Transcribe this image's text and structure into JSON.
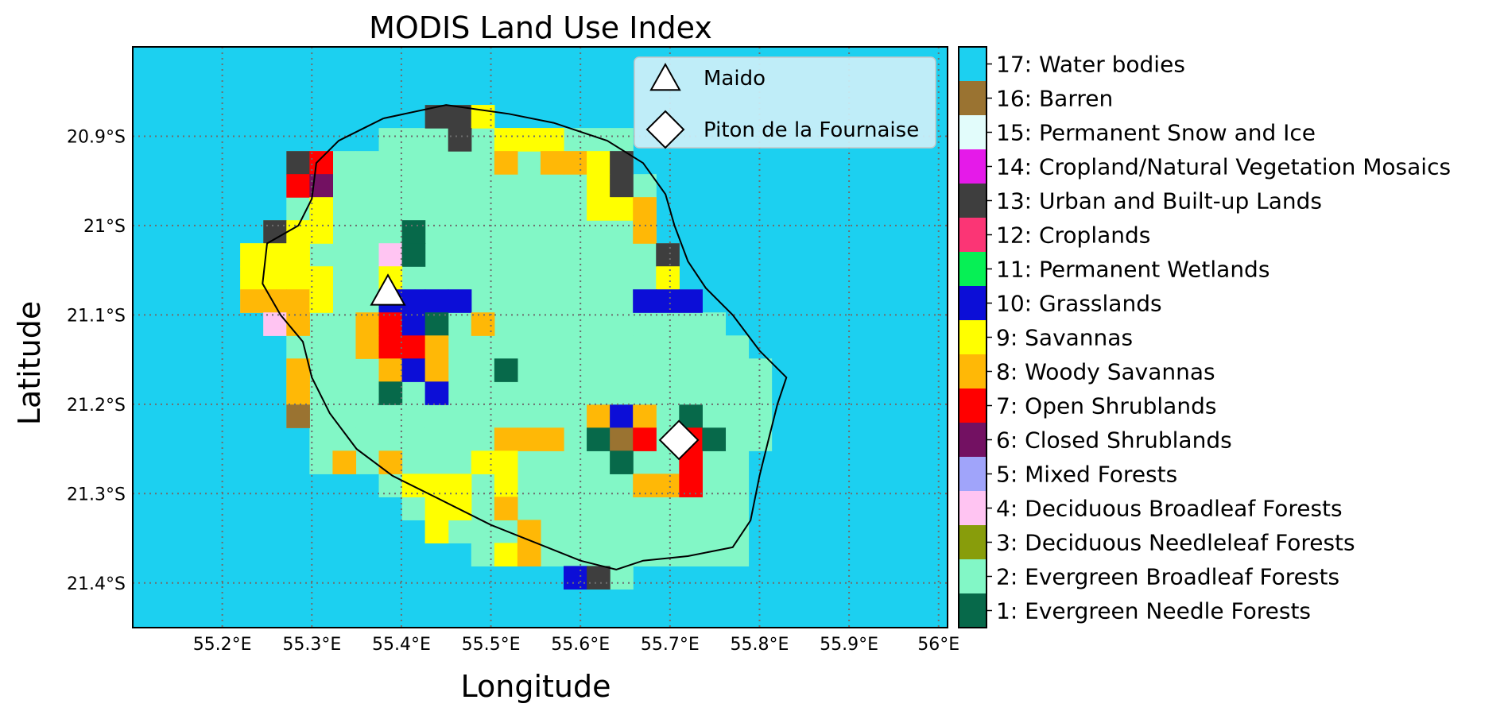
{
  "title": "MODIS Land Use Index",
  "xlabel": "Longitude",
  "ylabel": "Latitude",
  "chart_data": {
    "type": "heatmap",
    "title": "MODIS Land Use Index",
    "xlabel": "Longitude",
    "ylabel": "Latitude",
    "xlim": [
      55.1,
      56.01
    ],
    "ylim": [
      -21.45,
      -20.8
    ],
    "grid": true,
    "legend_placement": "top-right",
    "x_ticks": [
      {
        "value": 55.2,
        "label": "55.2°E"
      },
      {
        "value": 55.3,
        "label": "55.3°E"
      },
      {
        "value": 55.4,
        "label": "55.4°E"
      },
      {
        "value": 55.5,
        "label": "55.5°E"
      },
      {
        "value": 55.6,
        "label": "55.6°E"
      },
      {
        "value": 55.7,
        "label": "55.7°E"
      },
      {
        "value": 55.8,
        "label": "55.8°E"
      },
      {
        "value": 55.9,
        "label": "55.9°E"
      },
      {
        "value": 56.0,
        "label": "56°E"
      }
    ],
    "y_ticks": [
      {
        "value": -20.9,
        "label": "20.9°S"
      },
      {
        "value": -21.0,
        "label": "21°S"
      },
      {
        "value": -21.1,
        "label": "21.1°S"
      },
      {
        "value": -21.2,
        "label": "21.2°S"
      },
      {
        "value": -21.3,
        "label": "21.3°S"
      },
      {
        "value": -21.4,
        "label": "21.4°S"
      }
    ],
    "background_class": 17,
    "default_land_class": 2,
    "grid_origin": {
      "lon": 55.22,
      "lat": -20.865
    },
    "cell_size_deg": 0.0258,
    "cells": [
      {
        "r": 0,
        "c": 8,
        "v": 13
      },
      {
        "r": 0,
        "c": 9,
        "v": 13
      },
      {
        "r": 0,
        "c": 10,
        "v": 9
      },
      {
        "r": 1,
        "c": 9,
        "v": 13
      },
      {
        "r": 1,
        "c": 11,
        "v": 9
      },
      {
        "r": 1,
        "c": 12,
        "v": 9
      },
      {
        "r": 1,
        "c": 13,
        "v": 9
      },
      {
        "r": 2,
        "c": 2,
        "v": 13
      },
      {
        "r": 2,
        "c": 3,
        "v": 7
      },
      {
        "r": 2,
        "c": 11,
        "v": 8
      },
      {
        "r": 2,
        "c": 13,
        "v": 8
      },
      {
        "r": 2,
        "c": 14,
        "v": 8
      },
      {
        "r": 2,
        "c": 15,
        "v": 9
      },
      {
        "r": 2,
        "c": 16,
        "v": 13
      },
      {
        "r": 3,
        "c": 2,
        "v": 7
      },
      {
        "r": 3,
        "c": 3,
        "v": 6
      },
      {
        "r": 3,
        "c": 15,
        "v": 9
      },
      {
        "r": 3,
        "c": 16,
        "v": 13
      },
      {
        "r": 4,
        "c": 3,
        "v": 9
      },
      {
        "r": 4,
        "c": 15,
        "v": 9
      },
      {
        "r": 4,
        "c": 16,
        "v": 9
      },
      {
        "r": 4,
        "c": 17,
        "v": 8
      },
      {
        "r": 5,
        "c": 1,
        "v": 13
      },
      {
        "r": 5,
        "c": 2,
        "v": 9
      },
      {
        "r": 5,
        "c": 3,
        "v": 9
      },
      {
        "r": 5,
        "c": 7,
        "v": 1
      },
      {
        "r": 5,
        "c": 17,
        "v": 8
      },
      {
        "r": 6,
        "c": 0,
        "v": 9
      },
      {
        "r": 6,
        "c": 1,
        "v": 9
      },
      {
        "r": 6,
        "c": 2,
        "v": 9
      },
      {
        "r": 6,
        "c": 6,
        "v": 4
      },
      {
        "r": 6,
        "c": 7,
        "v": 1
      },
      {
        "r": 6,
        "c": 18,
        "v": 13
      },
      {
        "r": 7,
        "c": 0,
        "v": 9
      },
      {
        "r": 7,
        "c": 1,
        "v": 9
      },
      {
        "r": 7,
        "c": 2,
        "v": 9
      },
      {
        "r": 7,
        "c": 3,
        "v": 9
      },
      {
        "r": 7,
        "c": 6,
        "v": 9
      },
      {
        "r": 7,
        "c": 18,
        "v": 9
      },
      {
        "r": 8,
        "c": 0,
        "v": 8
      },
      {
        "r": 8,
        "c": 1,
        "v": 8
      },
      {
        "r": 8,
        "c": 2,
        "v": 8
      },
      {
        "r": 8,
        "c": 3,
        "v": 9
      },
      {
        "r": 8,
        "c": 6,
        "v": 10
      },
      {
        "r": 8,
        "c": 7,
        "v": 10
      },
      {
        "r": 8,
        "c": 8,
        "v": 10
      },
      {
        "r": 8,
        "c": 9,
        "v": 10
      },
      {
        "r": 8,
        "c": 17,
        "v": 10
      },
      {
        "r": 8,
        "c": 18,
        "v": 10
      },
      {
        "r": 8,
        "c": 19,
        "v": 10
      },
      {
        "r": 9,
        "c": 1,
        "v": 4
      },
      {
        "r": 9,
        "c": 2,
        "v": 8
      },
      {
        "r": 9,
        "c": 5,
        "v": 8
      },
      {
        "r": 9,
        "c": 6,
        "v": 7
      },
      {
        "r": 9,
        "c": 7,
        "v": 10
      },
      {
        "r": 9,
        "c": 8,
        "v": 1
      },
      {
        "r": 9,
        "c": 10,
        "v": 8
      },
      {
        "r": 10,
        "c": 5,
        "v": 8
      },
      {
        "r": 10,
        "c": 6,
        "v": 7
      },
      {
        "r": 10,
        "c": 7,
        "v": 7
      },
      {
        "r": 10,
        "c": 8,
        "v": 8
      },
      {
        "r": 11,
        "c": 2,
        "v": 8
      },
      {
        "r": 11,
        "c": 6,
        "v": 8
      },
      {
        "r": 11,
        "c": 7,
        "v": 10
      },
      {
        "r": 11,
        "c": 8,
        "v": 8
      },
      {
        "r": 11,
        "c": 11,
        "v": 1
      },
      {
        "r": 12,
        "c": 2,
        "v": 8
      },
      {
        "r": 12,
        "c": 6,
        "v": 1
      },
      {
        "r": 12,
        "c": 8,
        "v": 10
      },
      {
        "r": 13,
        "c": 2,
        "v": 16
      },
      {
        "r": 13,
        "c": 15,
        "v": 8
      },
      {
        "r": 13,
        "c": 16,
        "v": 10
      },
      {
        "r": 13,
        "c": 17,
        "v": 8
      },
      {
        "r": 13,
        "c": 19,
        "v": 1
      },
      {
        "r": 14,
        "c": 11,
        "v": 8
      },
      {
        "r": 14,
        "c": 12,
        "v": 8
      },
      {
        "r": 14,
        "c": 13,
        "v": 8
      },
      {
        "r": 14,
        "c": 15,
        "v": 1
      },
      {
        "r": 14,
        "c": 16,
        "v": 16
      },
      {
        "r": 14,
        "c": 17,
        "v": 7
      },
      {
        "r": 14,
        "c": 19,
        "v": 7
      },
      {
        "r": 14,
        "c": 20,
        "v": 1
      },
      {
        "r": 15,
        "c": 4,
        "v": 8
      },
      {
        "r": 15,
        "c": 6,
        "v": 8
      },
      {
        "r": 15,
        "c": 10,
        "v": 9
      },
      {
        "r": 15,
        "c": 11,
        "v": 9
      },
      {
        "r": 15,
        "c": 16,
        "v": 1
      },
      {
        "r": 15,
        "c": 19,
        "v": 7
      },
      {
        "r": 16,
        "c": 7,
        "v": 9
      },
      {
        "r": 16,
        "c": 8,
        "v": 9
      },
      {
        "r": 16,
        "c": 9,
        "v": 9
      },
      {
        "r": 16,
        "c": 11,
        "v": 9
      },
      {
        "r": 16,
        "c": 17,
        "v": 8
      },
      {
        "r": 16,
        "c": 18,
        "v": 8
      },
      {
        "r": 16,
        "c": 19,
        "v": 7
      },
      {
        "r": 17,
        "c": 8,
        "v": 9
      },
      {
        "r": 17,
        "c": 9,
        "v": 9
      },
      {
        "r": 17,
        "c": 11,
        "v": 8
      },
      {
        "r": 18,
        "c": 8,
        "v": 9
      },
      {
        "r": 18,
        "c": 12,
        "v": 8
      },
      {
        "r": 19,
        "c": 11,
        "v": 9
      },
      {
        "r": 19,
        "c": 12,
        "v": 8
      },
      {
        "r": 20,
        "c": 14,
        "v": 10
      },
      {
        "r": 20,
        "c": 15,
        "v": 13
      }
    ],
    "land_rows": [
      {
        "r": 0,
        "c0": 8,
        "c1": 10
      },
      {
        "r": 1,
        "c0": 6,
        "c1": 16
      },
      {
        "r": 2,
        "c0": 2,
        "c1": 16
      },
      {
        "r": 3,
        "c0": 2,
        "c1": 17
      },
      {
        "r": 4,
        "c0": 2,
        "c1": 17
      },
      {
        "r": 5,
        "c0": 1,
        "c1": 17
      },
      {
        "r": 6,
        "c0": 0,
        "c1": 18
      },
      {
        "r": 7,
        "c0": 0,
        "c1": 18
      },
      {
        "r": 8,
        "c0": 0,
        "c1": 19
      },
      {
        "r": 9,
        "c0": 1,
        "c1": 20
      },
      {
        "r": 10,
        "c0": 2,
        "c1": 21
      },
      {
        "r": 11,
        "c0": 2,
        "c1": 22
      },
      {
        "r": 12,
        "c0": 2,
        "c1": 22
      },
      {
        "r": 13,
        "c0": 2,
        "c1": 22
      },
      {
        "r": 14,
        "c0": 3,
        "c1": 22
      },
      {
        "r": 15,
        "c0": 3,
        "c1": 21
      },
      {
        "r": 16,
        "c0": 6,
        "c1": 21
      },
      {
        "r": 17,
        "c0": 7,
        "c1": 21
      },
      {
        "r": 18,
        "c0": 8,
        "c1": 21
      },
      {
        "r": 19,
        "c0": 10,
        "c1": 21
      },
      {
        "r": 20,
        "c0": 14,
        "c1": 16
      }
    ],
    "coastline": [
      [
        55.38,
        -20.88
      ],
      [
        55.45,
        -20.865
      ],
      [
        55.52,
        -20.875
      ],
      [
        55.57,
        -20.885
      ],
      [
        55.63,
        -20.905
      ],
      [
        55.67,
        -20.93
      ],
      [
        55.695,
        -20.965
      ],
      [
        55.705,
        -21.0
      ],
      [
        55.72,
        -21.04
      ],
      [
        55.74,
        -21.07
      ],
      [
        55.77,
        -21.1
      ],
      [
        55.8,
        -21.14
      ],
      [
        55.83,
        -21.17
      ],
      [
        55.82,
        -21.2
      ],
      [
        55.81,
        -21.24
      ],
      [
        55.8,
        -21.28
      ],
      [
        55.79,
        -21.33
      ],
      [
        55.77,
        -21.36
      ],
      [
        55.72,
        -21.37
      ],
      [
        55.67,
        -21.375
      ],
      [
        55.64,
        -21.385
      ],
      [
        55.6,
        -21.375
      ],
      [
        55.55,
        -21.355
      ],
      [
        55.5,
        -21.335
      ],
      [
        55.44,
        -21.305
      ],
      [
        55.39,
        -21.28
      ],
      [
        55.35,
        -21.25
      ],
      [
        55.32,
        -21.21
      ],
      [
        55.3,
        -21.17
      ],
      [
        55.29,
        -21.13
      ],
      [
        55.265,
        -21.1
      ],
      [
        55.245,
        -21.065
      ],
      [
        55.25,
        -21.02
      ],
      [
        55.285,
        -21.0
      ],
      [
        55.3,
        -20.97
      ],
      [
        55.305,
        -20.93
      ],
      [
        55.33,
        -20.905
      ],
      [
        55.36,
        -20.89
      ],
      [
        55.38,
        -20.88
      ]
    ],
    "markers": [
      {
        "name": "Maido",
        "symbol": "triangle",
        "lon": 55.385,
        "lat": -21.075
      },
      {
        "name": "Piton de la Fournaise",
        "symbol": "diamond",
        "lon": 55.71,
        "lat": -21.24
      }
    ],
    "colorbar": [
      {
        "value": 17,
        "label": "17: Water bodies",
        "color": "#1cd0f0"
      },
      {
        "value": 16,
        "label": "16: Barren",
        "color": "#9a7331"
      },
      {
        "value": 15,
        "label": "15: Permanent Snow and Ice",
        "color": "#e2fcfb"
      },
      {
        "value": 14,
        "label": "14: Cropland/Natural Vegetation Mosaics",
        "color": "#e51ae9"
      },
      {
        "value": 13,
        "label": "13: Urban and Built-up Lands",
        "color": "#3e3e3e"
      },
      {
        "value": 12,
        "label": "12: Croplands",
        "color": "#fb3575"
      },
      {
        "value": 11,
        "label": "11: Permanent Wetlands",
        "color": "#06f055"
      },
      {
        "value": 10,
        "label": "10: Grasslands",
        "color": "#0c0ed7"
      },
      {
        "value": 9,
        "label": "9: Savannas",
        "color": "#ffff00"
      },
      {
        "value": 8,
        "label": "8: Woody Savannas",
        "color": "#ffb806"
      },
      {
        "value": 7,
        "label": "7: Open Shrublands",
        "color": "#ff0000"
      },
      {
        "value": 6,
        "label": "6: Closed Shrublands",
        "color": "#731162"
      },
      {
        "value": 5,
        "label": "5: Mixed Forests",
        "color": "#a0a4fa"
      },
      {
        "value": 4,
        "label": "4: Deciduous Broadleaf Forests",
        "color": "#ffc4f2"
      },
      {
        "value": 3,
        "label": "3: Deciduous Needleleaf Forests",
        "color": "#889d0b"
      },
      {
        "value": 2,
        "label": "2: Evergreen Broadleaf Forests",
        "color": "#82f7c6"
      },
      {
        "value": 1,
        "label": "1: Evergreen Needle Forests",
        "color": "#07694a"
      }
    ]
  },
  "legend": {
    "items": [
      {
        "label": "Maido",
        "symbol": "triangle"
      },
      {
        "label": "Piton de la Fournaise",
        "symbol": "diamond"
      }
    ]
  }
}
